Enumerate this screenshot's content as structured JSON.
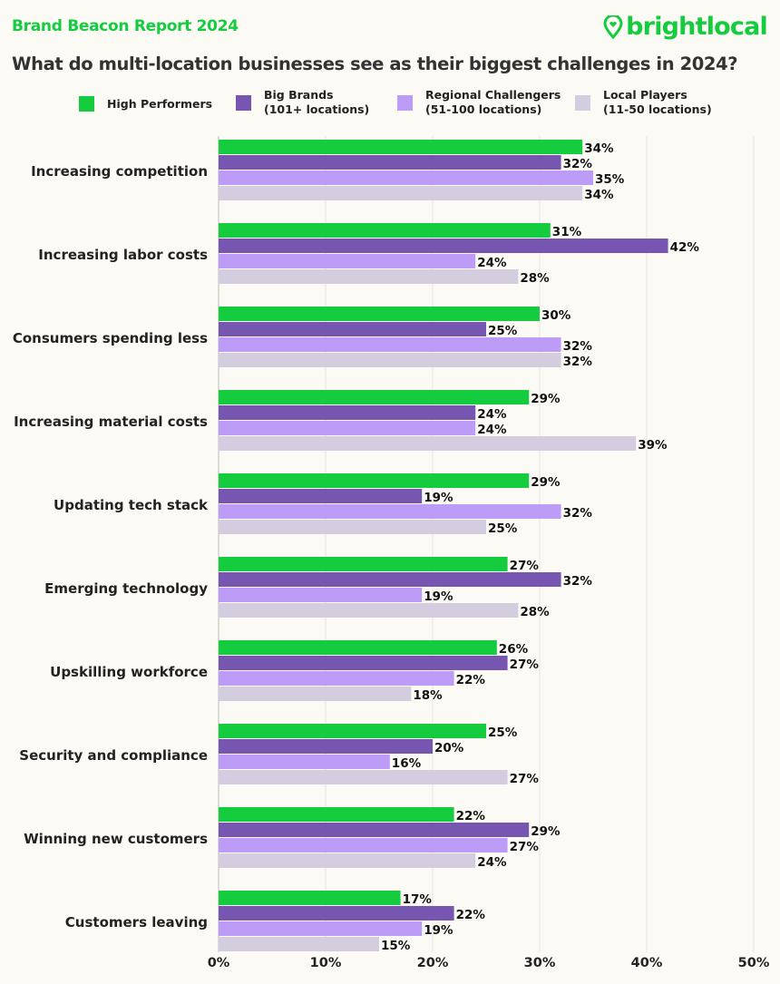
{
  "header": {
    "report_title": "Brand Beacon Report 2024",
    "logo_text": "brightlocal"
  },
  "chart_data": {
    "type": "bar",
    "orientation": "horizontal",
    "title": "What do multi-location businesses see as their biggest challenges in 2024?",
    "categories": [
      "Increasing competition",
      "Increasing labor costs",
      "Consumers spending less",
      "Increasing material costs",
      "Updating tech stack",
      "Emerging technology",
      "Upskilling workforce",
      "Security and compliance",
      "Winning new customers",
      "Customers leaving"
    ],
    "series": [
      {
        "name": "High Performers",
        "sub": "",
        "color": "#14cc3e",
        "values": [
          34,
          31,
          30,
          29,
          29,
          27,
          26,
          25,
          22,
          17
        ]
      },
      {
        "name": "Big Brands",
        "sub": "(101+ locations)",
        "color": "#7756b2",
        "values": [
          32,
          42,
          25,
          24,
          19,
          32,
          27,
          20,
          29,
          22
        ]
      },
      {
        "name": "Regional Challengers",
        "sub": "(51-100 locations)",
        "color": "#bc9cf7",
        "values": [
          35,
          24,
          32,
          24,
          32,
          19,
          22,
          16,
          27,
          19
        ]
      },
      {
        "name": "Local Players",
        "sub": "(11-50 locations)",
        "color": "#d4cde0",
        "values": [
          34,
          28,
          32,
          39,
          25,
          28,
          18,
          27,
          24,
          15
        ]
      }
    ],
    "xlim": [
      0,
      50
    ],
    "xticks": [
      "0%",
      "10%",
      "20%",
      "30%",
      "40%",
      "50%"
    ],
    "value_suffix": "%",
    "grid": true,
    "legend": "top"
  }
}
